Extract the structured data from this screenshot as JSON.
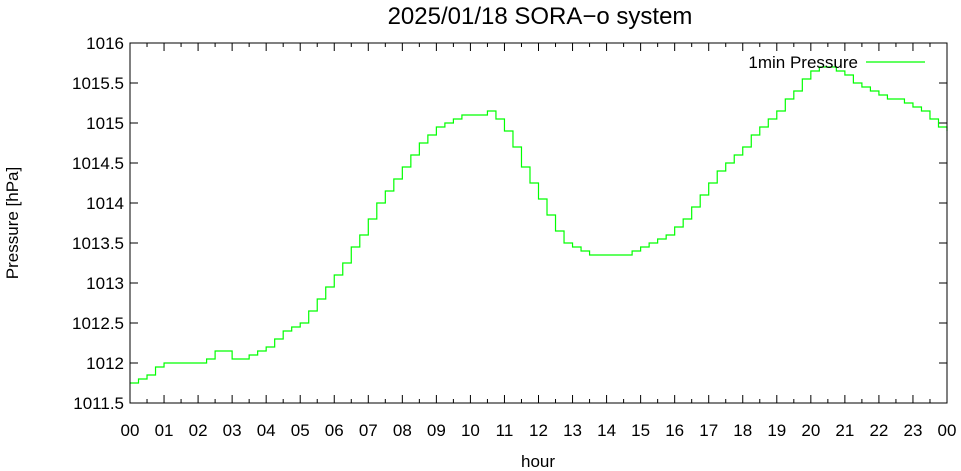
{
  "chart_data": {
    "type": "line",
    "title": "2025/01/18 SORA−o system",
    "xlabel": "hour",
    "ylabel": "Pressure [hPa]",
    "xlim": [
      0,
      24
    ],
    "ylim": [
      1011.5,
      1016
    ],
    "x_ticks": [
      0,
      1,
      2,
      3,
      4,
      5,
      6,
      7,
      8,
      9,
      10,
      11,
      12,
      13,
      14,
      15,
      16,
      17,
      18,
      19,
      20,
      21,
      22,
      23,
      24
    ],
    "x_tick_labels": [
      "00",
      "01",
      "02",
      "03",
      "04",
      "05",
      "06",
      "07",
      "08",
      "09",
      "10",
      "11",
      "12",
      "13",
      "14",
      "15",
      "16",
      "17",
      "18",
      "19",
      "20",
      "21",
      "22",
      "23",
      "00"
    ],
    "y_ticks": [
      1011.5,
      1012,
      1012.5,
      1013,
      1013.5,
      1014,
      1014.5,
      1015,
      1015.5,
      1016
    ],
    "y_tick_labels": [
      "1011.5",
      "1012",
      "1012.5",
      "1013",
      "1013.5",
      "1014",
      "1014.5",
      "1015",
      "1015.5",
      "1016"
    ],
    "legend_position": "top-right",
    "grid": false,
    "series": [
      {
        "name": "1min Pressure",
        "color": "#00ff00",
        "x": [
          0,
          0.25,
          0.5,
          0.75,
          1,
          1.5,
          2,
          2.25,
          2.5,
          3,
          3.25,
          3.5,
          3.75,
          4,
          4.25,
          4.5,
          4.75,
          5,
          5.25,
          5.5,
          5.75,
          6,
          6.25,
          6.5,
          6.75,
          7,
          7.25,
          7.5,
          7.75,
          8,
          8.25,
          8.5,
          8.75,
          9,
          9.25,
          9.5,
          9.75,
          10,
          10.25,
          10.5,
          10.75,
          11,
          11.25,
          11.5,
          11.75,
          12,
          12.25,
          12.5,
          12.75,
          13,
          13.25,
          13.5,
          13.75,
          14,
          14.25,
          14.5,
          14.75,
          15,
          15.25,
          15.5,
          15.75,
          16,
          16.25,
          16.5,
          16.75,
          17,
          17.25,
          17.5,
          17.75,
          18,
          18.25,
          18.5,
          18.75,
          19,
          19.25,
          19.5,
          19.75,
          20,
          20.25,
          20.5,
          20.75,
          21,
          21.25,
          21.5,
          21.75,
          22,
          22.25,
          22.5,
          22.75,
          23,
          23.25,
          23.5,
          23.75,
          24
        ],
        "y": [
          1011.75,
          1011.8,
          1011.85,
          1011.95,
          1012.0,
          1012.0,
          1012.0,
          1012.05,
          1012.15,
          1012.05,
          1012.05,
          1012.1,
          1012.15,
          1012.2,
          1012.3,
          1012.4,
          1012.45,
          1012.5,
          1012.65,
          1012.8,
          1012.95,
          1013.1,
          1013.25,
          1013.45,
          1013.6,
          1013.8,
          1014.0,
          1014.15,
          1014.3,
          1014.45,
          1014.6,
          1014.75,
          1014.85,
          1014.95,
          1015.0,
          1015.05,
          1015.1,
          1015.1,
          1015.1,
          1015.15,
          1015.05,
          1014.9,
          1014.7,
          1014.45,
          1014.25,
          1014.05,
          1013.85,
          1013.65,
          1013.5,
          1013.45,
          1013.4,
          1013.35,
          1013.35,
          1013.35,
          1013.35,
          1013.35,
          1013.4,
          1013.45,
          1013.5,
          1013.55,
          1013.6,
          1013.7,
          1013.8,
          1013.95,
          1014.1,
          1014.25,
          1014.4,
          1014.5,
          1014.6,
          1014.7,
          1014.85,
          1014.95,
          1015.05,
          1015.15,
          1015.3,
          1015.4,
          1015.55,
          1015.65,
          1015.7,
          1015.7,
          1015.65,
          1015.6,
          1015.5,
          1015.45,
          1015.4,
          1015.35,
          1015.3,
          1015.3,
          1015.25,
          1015.2,
          1015.15,
          1015.05,
          1014.95,
          1014.9
        ]
      }
    ]
  }
}
